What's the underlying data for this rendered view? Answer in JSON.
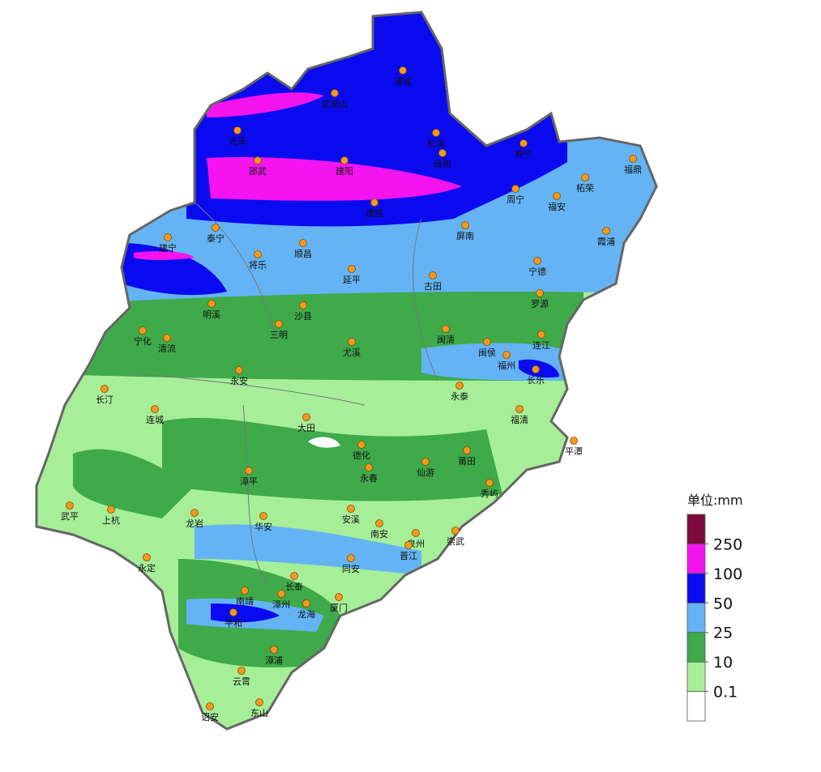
{
  "cities": [
    "浦城",
    "武夷山",
    "光泽",
    "松溪",
    "寿宁",
    "政和",
    "邵武",
    "建阳",
    "福鼎",
    "柘荣",
    "周宁",
    "福安",
    "建瓯",
    "泰宁",
    "屏南",
    "霞浦",
    "建宁",
    "顺昌",
    "将乐",
    "宁德",
    "延平",
    "古田",
    "罗源",
    "明溪",
    "沙县",
    "宁化",
    "清流",
    "三明",
    "闽清",
    "尤溪",
    "闽侯",
    "连江",
    "福州",
    "长乐",
    "永安",
    "长汀",
    "永泰",
    "连城",
    "福清",
    "大田",
    "平潭",
    "德化",
    "莆田",
    "永春",
    "仙游",
    "漳平",
    "秀屿",
    "武平",
    "上杭",
    "龙岩",
    "华安",
    "安溪",
    "南安",
    "泉州",
    "崇武",
    "晋江",
    "永定",
    "同安",
    "长泰",
    "南靖",
    "漳州",
    "厦门",
    "龙海",
    "平和",
    "漳浦",
    "云霄",
    "东山",
    "诏安"
  ],
  "legend": {
    "title": "单位:mm",
    "thresholds": [
      0.1,
      10,
      25,
      50,
      100,
      250
    ],
    "colors": [
      "#ffffff",
      "#a6ef98",
      "#3faa4a",
      "#64b4f5",
      "#0a0af0",
      "#f514f0",
      "#7d0a3c"
    ]
  }
}
